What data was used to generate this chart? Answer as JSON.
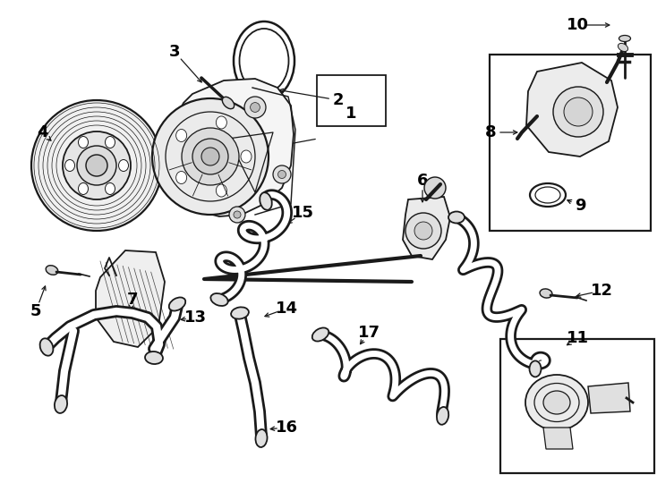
{
  "bg_color": "#ffffff",
  "line_color": "#1a1a1a",
  "label_color": "#000000",
  "figsize": [
    7.34,
    5.4
  ],
  "dpi": 100,
  "label_fs": 13,
  "lw": 1.3
}
